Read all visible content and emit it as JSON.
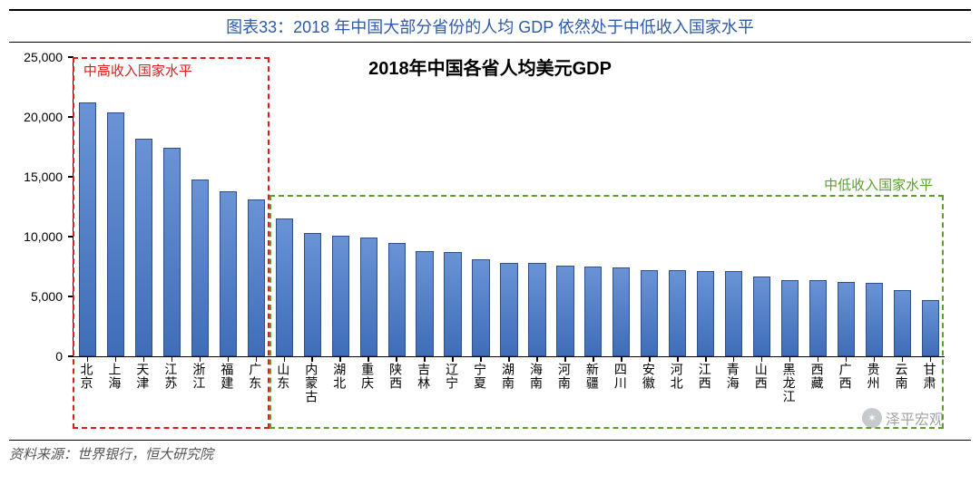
{
  "figure_caption": "图表33：2018 年中国大部分省份的人均 GDP 依然处于中低收入国家水平",
  "chart": {
    "type": "bar",
    "title": "2018年中国各省人均美元GDP",
    "title_fontsize": 20,
    "title_fontweight": "bold",
    "font_family": "SimSun",
    "label_fontsize": 14,
    "background_color": "#ffffff",
    "axis_color": "#000000",
    "bar_fill_top": "#6a93d6",
    "bar_fill_bottom": "#3f6db8",
    "bar_border_color": "#2d4f8a",
    "bar_width_ratio": 0.62,
    "ylim": [
      0,
      25000
    ],
    "ytick_step": 5000,
    "ytick_labels": [
      "0",
      "5,000",
      "10,000",
      "15,000",
      "20,000",
      "25,000"
    ],
    "categories": [
      "北京",
      "上海",
      "天津",
      "江苏",
      "浙江",
      "福建",
      "广东",
      "山东",
      "内蒙古",
      "湖北",
      "重庆",
      "陕西",
      "吉林",
      "辽宁",
      "宁夏",
      "湖南",
      "海南",
      "河南",
      "新疆",
      "四川",
      "安徽",
      "河北",
      "江西",
      "青海",
      "山西",
      "黑龙江",
      "西藏",
      "广西",
      "贵州",
      "云南",
      "甘肃"
    ],
    "values": [
      21200,
      20400,
      18200,
      17400,
      14800,
      13800,
      13100,
      11500,
      10300,
      10100,
      9900,
      9500,
      8800,
      8700,
      8100,
      7800,
      7800,
      7600,
      7500,
      7400,
      7200,
      7200,
      7100,
      7100,
      6700,
      6400,
      6400,
      6200,
      6100,
      5500,
      4700
    ],
    "groups": [
      {
        "label": "中高收入国家水平",
        "color": "#e11b1b",
        "range": [
          0,
          6
        ],
        "box_top_value": 25000,
        "box_bottom_extends_to_labels": true,
        "label_pos": "top-inside"
      },
      {
        "label": "中低收入国家水平",
        "color": "#5aa02c",
        "range": [
          7,
          30
        ],
        "box_top_value": 13500,
        "box_bottom_extends_to_labels": true,
        "label_pos": "top-right"
      }
    ]
  },
  "source_prefix": "资料来源：",
  "source_text": "世界银行，恒大研究院",
  "watermark": "泽平宏观"
}
